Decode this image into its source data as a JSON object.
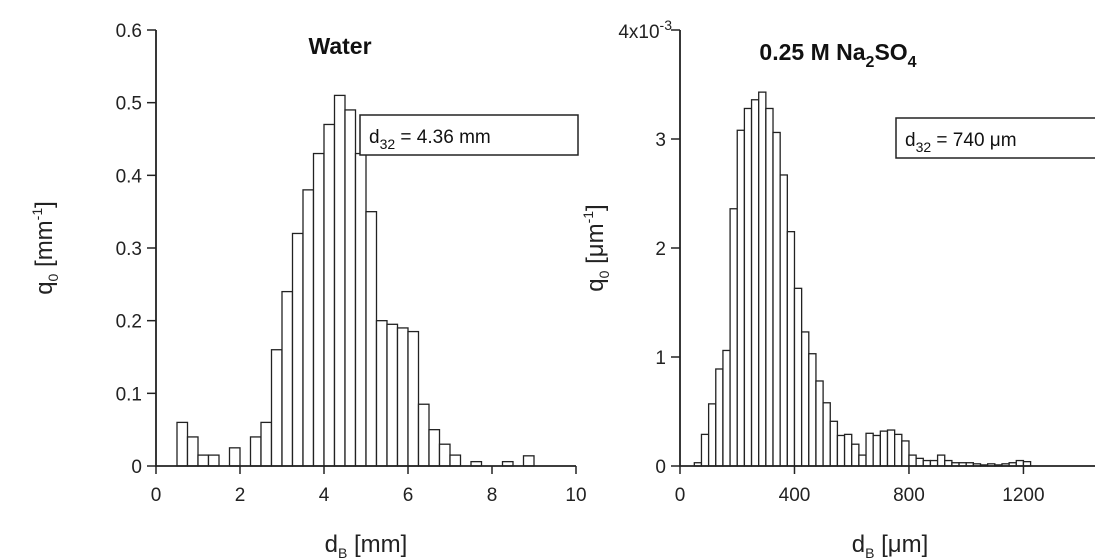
{
  "chart_data": [
    {
      "type": "bar",
      "title_main": "Water",
      "annotation": {
        "sym": "d",
        "sub": "32",
        "rest": " = 4.36 mm"
      },
      "ylabel": {
        "sym": "q",
        "sub": "0",
        "unit_pre": " [mm",
        "unit_sup": "-1",
        "unit_post": "]"
      },
      "xlabel": {
        "sym": "d",
        "sub": "B",
        "unit": " [mm]"
      },
      "xlim": [
        0,
        10
      ],
      "ylim": [
        0,
        0.6
      ],
      "xticks": [
        "0",
        "2",
        "4",
        "6",
        "8",
        "10"
      ],
      "yticks": [
        "0",
        "0.1",
        "0.2",
        "0.3",
        "0.4",
        "0.5",
        "0.6"
      ],
      "bin_width": 0.25,
      "bin_start": 0.5,
      "values": [
        0.06,
        0.04,
        0.015,
        0.015,
        0.0,
        0.025,
        0.0,
        0.04,
        0.06,
        0.16,
        0.24,
        0.32,
        0.38,
        0.43,
        0.47,
        0.51,
        0.49,
        0.43,
        0.35,
        0.2,
        0.195,
        0.19,
        0.185,
        0.085,
        0.05,
        0.03,
        0.015,
        0.0,
        0.006,
        0.0,
        0.0,
        0.006,
        0.0,
        0.014
      ]
    },
    {
      "type": "bar",
      "title_main": "0.25 M Na",
      "title_sub1": "2",
      "title_mid": "SO",
      "title_sub2": "4",
      "annotation": {
        "sym": "d",
        "sub": "32",
        "rest": " = 740 μm"
      },
      "ylabel": {
        "sym": "q",
        "sub": "0",
        "unit_pre": " [μm",
        "unit_sup": "-1",
        "unit_post": "]"
      },
      "xlabel": {
        "sym": "d",
        "sub": "B",
        "unit": " [μm]"
      },
      "xlim": [
        0,
        1450
      ],
      "ylim": [
        0,
        0.004
      ],
      "xticks": [
        "0",
        "400",
        "800",
        "1200"
      ],
      "yticks": [
        "0",
        "1",
        "2",
        "3"
      ],
      "ytick_top": "4x10",
      "ytick_top_exp": "-3",
      "bin_width": 25,
      "bin_start": 50,
      "values": [
        3e-05,
        0.00029,
        0.00057,
        0.00089,
        0.00106,
        0.00236,
        0.00308,
        0.00328,
        0.00336,
        0.00343,
        0.00328,
        0.00306,
        0.00267,
        0.00215,
        0.00163,
        0.00123,
        0.00103,
        0.00078,
        0.00058,
        0.00041,
        0.00028,
        0.00029,
        0.0002,
        0.0001,
        0.0003,
        0.00028,
        0.00032,
        0.00033,
        0.00029,
        0.00023,
        0.0001,
        7e-05,
        5e-05,
        5e-05,
        0.0001,
        5e-05,
        3e-05,
        3e-05,
        3e-05,
        2e-05,
        1e-05,
        2e-05,
        1e-05,
        2e-05,
        3e-05,
        5e-05,
        4e-05
      ]
    }
  ]
}
